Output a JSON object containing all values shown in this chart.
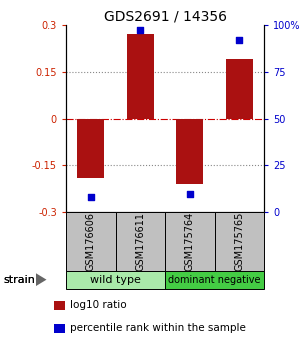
{
  "title": "GDS2691 / 14356",
  "samples": [
    "GSM176606",
    "GSM176611",
    "GSM175764",
    "GSM175765"
  ],
  "log10_ratio": [
    -0.19,
    0.27,
    -0.21,
    0.19
  ],
  "percentile_rank": [
    8,
    97,
    10,
    92
  ],
  "ylim_left": [
    -0.3,
    0.3
  ],
  "ylim_right": [
    0,
    100
  ],
  "yticks_left": [
    -0.3,
    -0.15,
    0,
    0.15,
    0.3
  ],
  "yticks_right": [
    0,
    25,
    50,
    75,
    100
  ],
  "ytick_labels_right": [
    "0",
    "25",
    "50",
    "75",
    "100%"
  ],
  "groups": [
    {
      "name": "wild type",
      "color": "#aaeaaa",
      "n_samples": 2
    },
    {
      "name": "dominant negative",
      "color": "#44cc44",
      "n_samples": 2
    }
  ],
  "bar_color": "#aa1111",
  "point_color": "#0000cc",
  "bar_width": 0.55,
  "dotted_line_color": "#888888",
  "zero_line_color": "#cc0000",
  "title_fontsize": 10,
  "tick_fontsize": 7,
  "sample_fontsize": 7,
  "group_fontsize": 8,
  "legend_fontsize": 7.5,
  "strain_fontsize": 8,
  "legend_items": [
    {
      "color": "#aa1111",
      "label": "log10 ratio"
    },
    {
      "color": "#0000cc",
      "label": "percentile rank within the sample"
    }
  ],
  "sample_box_color": "#c0c0c0",
  "arrow_color": "#666666"
}
